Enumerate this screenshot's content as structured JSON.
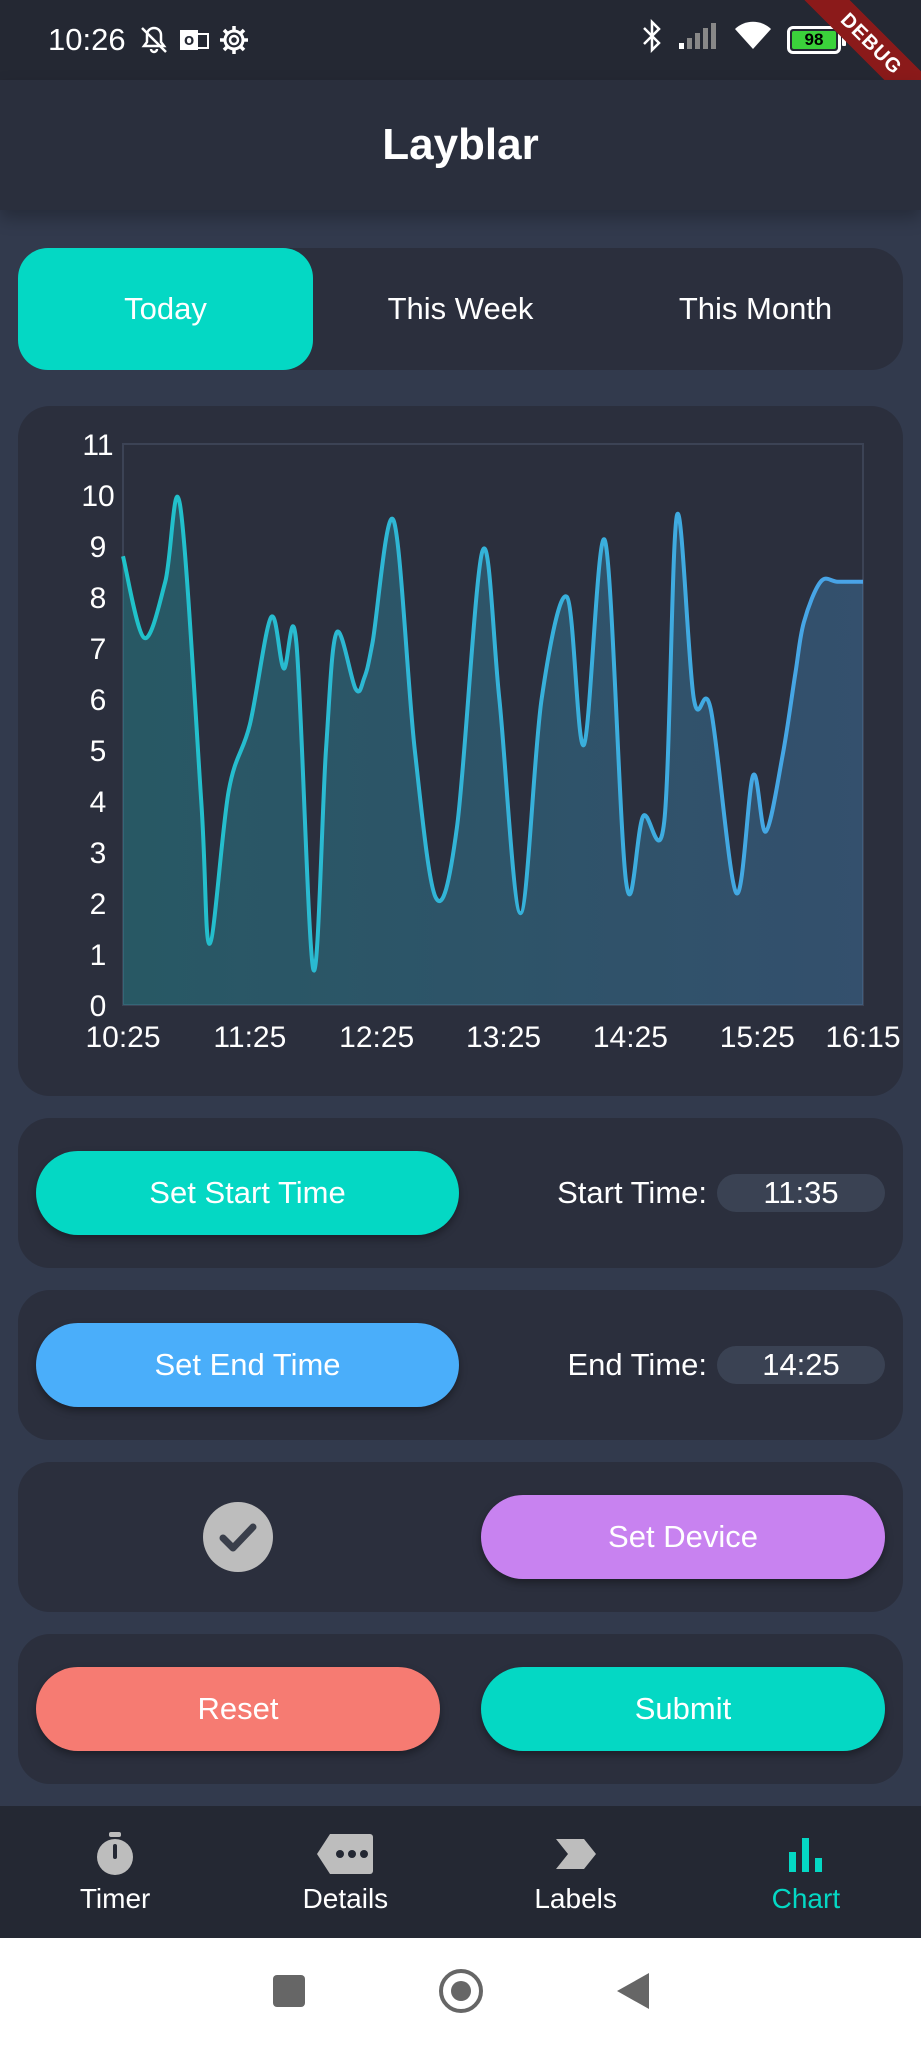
{
  "status_bar": {
    "time": "10:26",
    "battery": "98",
    "debug_label": "DEBUG"
  },
  "app": {
    "title": "Layblar"
  },
  "range_tabs": [
    {
      "label": "Today",
      "active": true
    },
    {
      "label": "This Week",
      "active": false
    },
    {
      "label": "This Month",
      "active": false
    }
  ],
  "chart_data": {
    "type": "area",
    "x_tick_labels": [
      "10:25",
      "11:25",
      "12:25",
      "13:25",
      "14:25",
      "15:25",
      "16:15"
    ],
    "x_range_minutes": [
      0,
      350
    ],
    "y_ticks": [
      0,
      1,
      2,
      3,
      4,
      5,
      6,
      7,
      8,
      9,
      10,
      11
    ],
    "ylim": [
      0,
      11
    ],
    "grid": false,
    "series": [
      {
        "x_minutes": [
          0,
          10,
          20,
          27,
          37,
          41,
          50,
          60,
          70,
          76,
          82,
          90,
          96,
          101,
          110,
          114,
          118,
          128,
          138,
          148,
          158,
          170,
          178,
          188,
          198,
          210,
          218,
          228,
          238,
          246,
          256,
          262,
          270,
          278,
          290,
          298,
          304,
          312,
          318,
          322,
          330,
          338,
          350
        ],
        "values": [
          8.8,
          7.2,
          8.3,
          9.8,
          4.0,
          1.2,
          4.2,
          5.5,
          7.6,
          6.6,
          7.1,
          0.7,
          5.0,
          7.3,
          6.2,
          6.4,
          7.1,
          9.5,
          5.0,
          2.1,
          3.5,
          8.9,
          6.0,
          1.8,
          6.0,
          8.0,
          5.1,
          9.1,
          2.4,
          3.7,
          3.6,
          9.6,
          6.0,
          5.8,
          2.2,
          4.5,
          3.4,
          4.9,
          6.5,
          7.5,
          8.3,
          8.3,
          8.3
        ],
        "color_start": "#1fc2c9",
        "color_end": "#4aa3e8"
      }
    ]
  },
  "start_time": {
    "button_label": "Set Start Time",
    "label": "Start Time:",
    "value": "11:35",
    "button_color": "#04d8c4"
  },
  "end_time": {
    "button_label": "Set End Time",
    "label": "End Time:",
    "value": "14:25",
    "button_color": "#4aaefa"
  },
  "device": {
    "button_label": "Set Device",
    "button_color": "#c882f0",
    "checked_icon": "check-circle-icon"
  },
  "actions": {
    "reset_label": "Reset",
    "reset_color": "#f67b72",
    "submit_label": "Submit",
    "submit_color": "#04d8c4"
  },
  "bottom_nav": [
    {
      "label": "Timer",
      "icon": "stopwatch-icon",
      "active": false
    },
    {
      "label": "Details",
      "icon": "more-tag-icon",
      "active": false
    },
    {
      "label": "Labels",
      "icon": "label-icon",
      "active": false
    },
    {
      "label": "Chart",
      "icon": "bar-chart-icon",
      "active": true
    }
  ],
  "colors": {
    "background": "#323a4d",
    "card": "#2b2f3d",
    "accent": "#04d8c4"
  }
}
